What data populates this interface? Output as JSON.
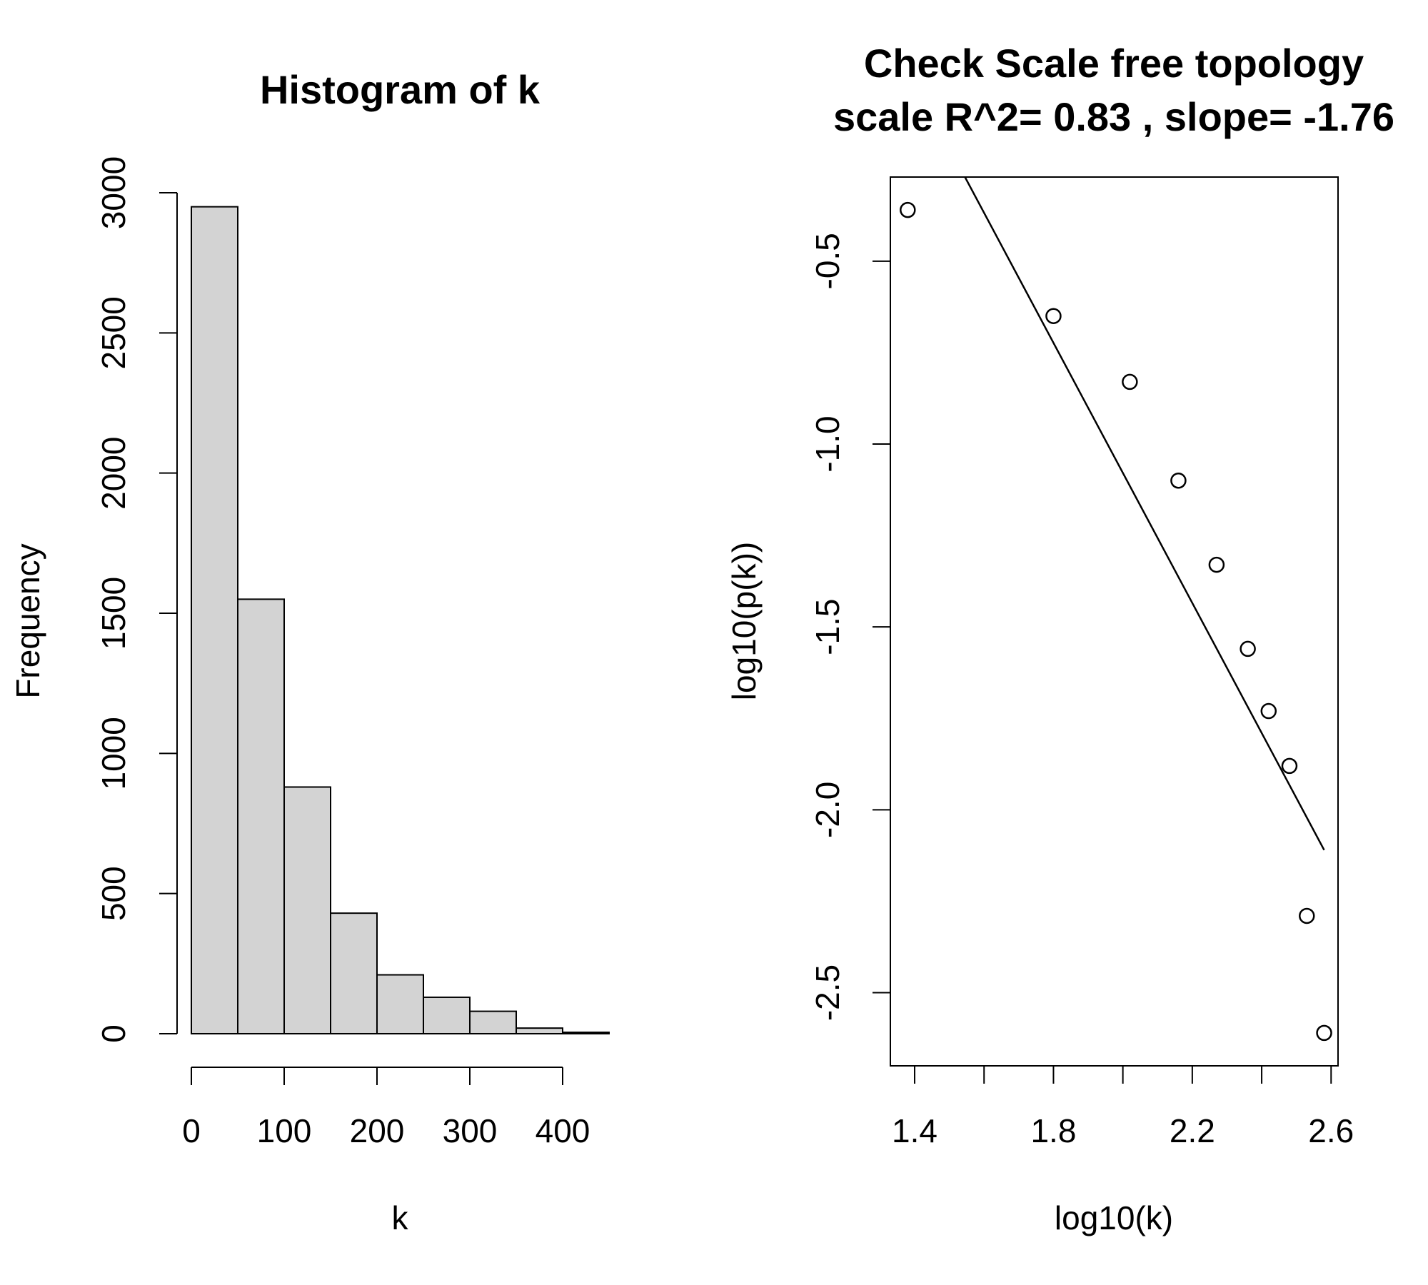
{
  "chart_data": [
    {
      "type": "bar",
      "title": "Histogram of k",
      "xlabel": "k",
      "ylabel": "Frequency",
      "bin_edges": [
        0,
        50,
        100,
        150,
        200,
        250,
        300,
        350,
        400,
        450
      ],
      "values": [
        2950,
        1550,
        880,
        430,
        210,
        130,
        80,
        20,
        5
      ],
      "xlim": [
        0,
        450
      ],
      "ylim": [
        0,
        3000
      ],
      "x_ticks": [
        0,
        100,
        200,
        300,
        400
      ],
      "y_ticks": [
        0,
        500,
        1000,
        1500,
        2000,
        2500,
        3000
      ],
      "grid": false
    },
    {
      "type": "scatter",
      "title_line1": "Check Scale free topology",
      "title_line2": "scale R^2= 0.83 , slope= -1.76",
      "xlabel": "log10(k)",
      "ylabel": "log10(p(k))",
      "x": [
        1.38,
        1.8,
        2.02,
        2.16,
        2.27,
        2.36,
        2.42,
        2.48,
        2.53,
        2.58
      ],
      "y": [
        -0.36,
        -0.65,
        -0.83,
        -1.1,
        -1.33,
        -1.56,
        -1.73,
        -1.88,
        -2.29,
        -2.61
      ],
      "fit_line": {
        "x": [
          1.545,
          2.58
        ],
        "y": [
          -0.27,
          -2.11
        ]
      },
      "xlim": [
        1.33,
        2.62
      ],
      "ylim": [
        -2.7,
        -0.27
      ],
      "x_ticks": [
        1.4,
        1.6,
        1.8,
        2.0,
        2.2,
        2.4,
        2.6
      ],
      "x_tick_labels": [
        "1.4",
        "",
        "1.8",
        "",
        "2.2",
        "",
        "2.6"
      ],
      "y_ticks": [
        -0.5,
        -1.0,
        -1.5,
        -2.0,
        -2.5
      ],
      "y_tick_labels": [
        "-0.5",
        "-1.0",
        "-1.5",
        "-2.0",
        "-2.5"
      ],
      "grid": false
    }
  ]
}
